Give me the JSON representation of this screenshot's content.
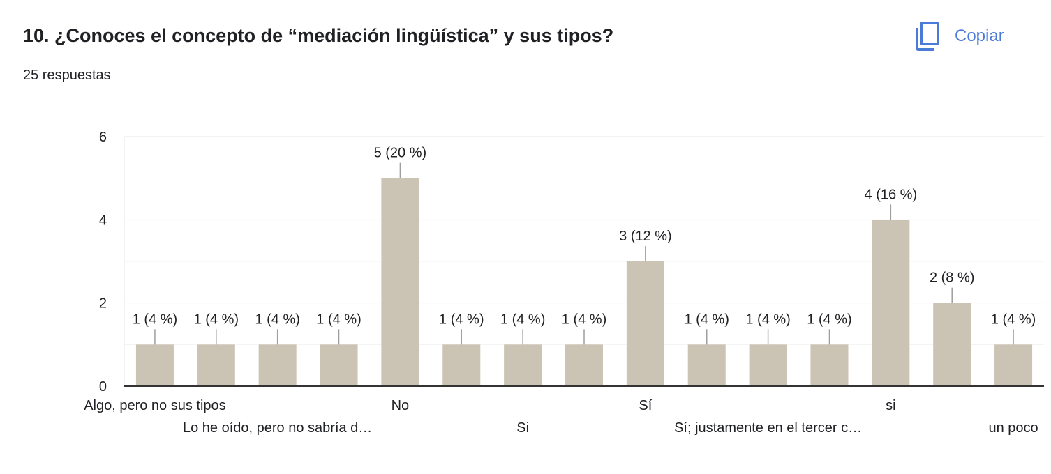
{
  "header": {
    "title": "10. ¿Conoces el concepto de “mediación lingüística” y sus tipos?",
    "responses": "25 respuestas",
    "copy_label": "Copiar",
    "copy_icon": "copy-icon",
    "accent_color": "#4a7bd8"
  },
  "chart_data": {
    "type": "bar",
    "categories": [
      "Algo, pero no sus tipos",
      "Lo he oído, pero no sabría d…",
      "",
      "",
      "No",
      "Si",
      "",
      "",
      "Sí",
      "Sí; justamente en el tercer c…",
      "",
      "",
      "si",
      "un poco",
      ""
    ],
    "values": [
      1,
      1,
      1,
      1,
      5,
      1,
      1,
      1,
      3,
      1,
      1,
      1,
      4,
      2,
      1
    ],
    "data_labels": [
      "1 (4 %)",
      "1 (4 %)",
      "1 (4 %)",
      "1 (4 %)",
      "5 (20 %)",
      "1 (4 %)",
      "1 (4 %)",
      "1 (4 %)",
      "3 (12 %)",
      "1 (4 %)",
      "1 (4 %)",
      "1 (4 %)",
      "4 (16 %)",
      "2 (8 %)",
      "1 (4 %)"
    ],
    "x_tick_labels": [
      {
        "index": 0,
        "text": "Algo, pero no sus tipos",
        "row": 1
      },
      {
        "index": 4,
        "text": "No",
        "row": 1
      },
      {
        "index": 8,
        "text": "Sí",
        "row": 1
      },
      {
        "index": 12,
        "text": "si",
        "row": 1
      },
      {
        "index": 2,
        "text": "Lo he oído, pero no sabría d…",
        "row": 2
      },
      {
        "index": 6,
        "text": "Si",
        "row": 2
      },
      {
        "index": 10,
        "text": "Sí; justamente en el tercer c…",
        "row": 2
      },
      {
        "index": 14,
        "text": "un poco",
        "row": 2
      }
    ],
    "y_ticks": [
      0,
      2,
      4,
      6
    ],
    "ylim": [
      0,
      6
    ],
    "grid": true,
    "bar_color": "#cbc3b3",
    "title": "",
    "xlabel": "",
    "ylabel": ""
  }
}
